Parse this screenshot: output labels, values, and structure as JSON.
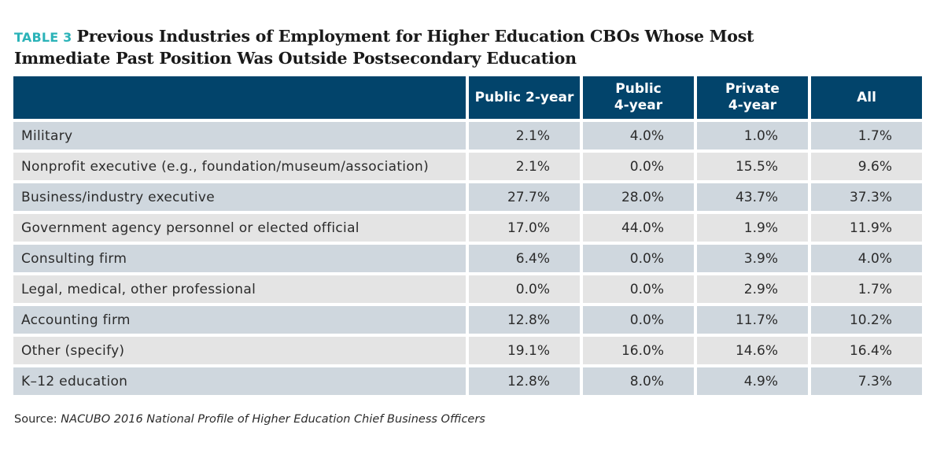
{
  "title": {
    "label": "TABLE 3",
    "line1": "Previous Industries of Employment for Higher Education CBOs Whose Most",
    "line2": "Immediate Past Position Was Outside Postsecondary Education"
  },
  "table": {
    "headers": [
      "",
      "Public 2-year",
      "Public\n4-year",
      "Private\n4-year",
      "All"
    ],
    "rows": [
      [
        "Military",
        "2.1%",
        "4.0%",
        "1.0%",
        "1.7%"
      ],
      [
        "Nonprofit executive (e.g., foundation/museum/association)",
        "2.1%",
        "0.0%",
        "15.5%",
        "9.6%"
      ],
      [
        "Business/industry executive",
        "27.7%",
        "28.0%",
        "43.7%",
        "37.3%"
      ],
      [
        "Government agency personnel or elected official",
        "17.0%",
        "44.0%",
        "1.9%",
        "11.9%"
      ],
      [
        "Consulting firm",
        "6.4%",
        "0.0%",
        "3.9%",
        "4.0%"
      ],
      [
        "Legal, medical, other professional",
        "0.0%",
        "0.0%",
        "2.9%",
        "1.7%"
      ],
      [
        "Accounting firm",
        "12.8%",
        "0.0%",
        "11.7%",
        "10.2%"
      ],
      [
        "Other (specify)",
        "19.1%",
        "16.0%",
        "14.6%",
        "16.4%"
      ],
      [
        "K–12 education",
        "12.8%",
        "8.0%",
        "4.9%",
        "7.3%"
      ]
    ]
  },
  "source": {
    "prefix": "Source: ",
    "publication": "NACUBO 2016 National Profile of Higher Education Chief Business Officers"
  },
  "colors": {
    "header_bg": "#02446b",
    "label_accent": "#2bb3b8",
    "row_odd": "#cfd7de",
    "row_even": "#e4e4e4"
  }
}
